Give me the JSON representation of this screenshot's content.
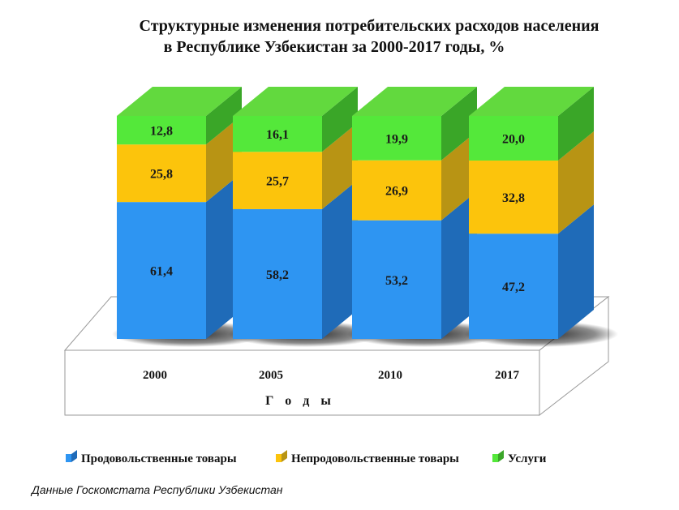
{
  "chart_data": {
    "type": "bar",
    "stacked": true,
    "three_d": true,
    "title_lines": [
      "Структурные изменения потребительских расходов населения",
      "в Республике Узбекистан за 2000-2017 годы, %"
    ],
    "xlabel": "Г о д ы",
    "ylabel": "",
    "ylim": [
      0,
      100
    ],
    "grid": false,
    "legend_position": "bottom",
    "categories": [
      "2000",
      "2005",
      "2010",
      "2017"
    ],
    "series": [
      {
        "name": "Продовольственные товары",
        "values": [
          61.4,
          58.2,
          53.2,
          47.2
        ],
        "labels": [
          "61,4",
          "58,2",
          "53,2",
          "47,2"
        ],
        "color": "#2e95f2",
        "side_color": "#1f6bb8",
        "top_color": "#5fb3ff"
      },
      {
        "name": "Непродовольственные товары",
        "values": [
          25.8,
          25.7,
          26.9,
          32.8
        ],
        "labels": [
          "25,8",
          "25,7",
          "26,9",
          "32,8"
        ],
        "color": "#fcc40c",
        "side_color": "#b89414",
        "top_color": "#ffd84a"
      },
      {
        "name": "Услуги",
        "values": [
          12.8,
          16.1,
          19.9,
          20.0
        ],
        "labels": [
          "12,8",
          "16,1",
          "19,9",
          "20,0"
        ],
        "color": "#54e83a",
        "side_color": "#3aa628",
        "top_color": "#62d93e"
      }
    ]
  },
  "source_note": "Данные Госкомстата Республики Узбекистан"
}
